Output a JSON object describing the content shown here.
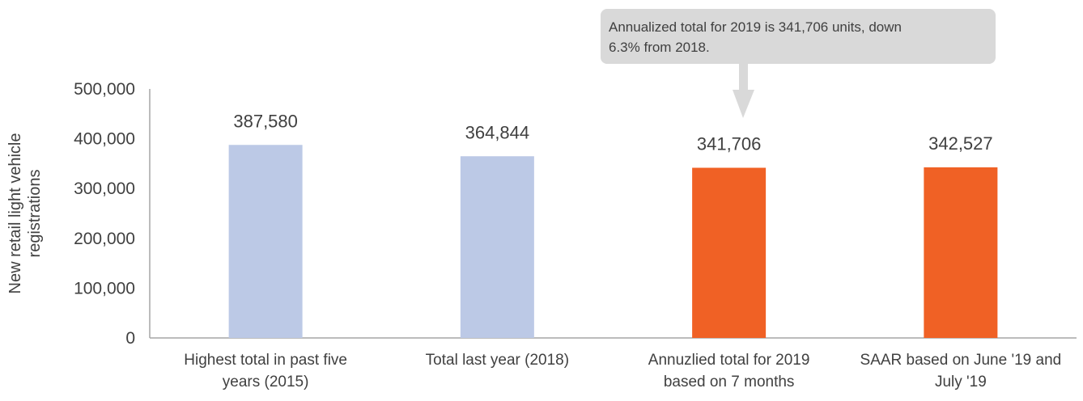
{
  "chart_data": {
    "type": "bar",
    "categories": [
      [
        "Highest total in past five",
        "years (2015)"
      ],
      [
        "Total last year (2018)"
      ],
      [
        "Annuzlied total for 2019",
        "based on 7 months"
      ],
      [
        "SAAR based on June '19 and",
        "July '19"
      ]
    ],
    "values": [
      387580,
      364844,
      341706,
      342527
    ],
    "data_labels": [
      "387,580",
      "364,844",
      "341,706",
      "342,527"
    ],
    "bar_colors": [
      "#bcc9e6",
      "#bcc9e6",
      "#f06125",
      "#f06125"
    ],
    "ylabel": [
      "New retail light vehicle",
      "registrations"
    ],
    "ylim": [
      0,
      500000
    ],
    "yticks": [
      0,
      100000,
      200000,
      300000,
      400000,
      500000
    ],
    "ytick_labels": [
      "0",
      "100,000",
      "200,000",
      "300,000",
      "400,000",
      "500,000"
    ],
    "grid": false,
    "annotation": {
      "text": [
        "Annualized total for 2019 is 341,706 units, down",
        "6.3% from 2018."
      ],
      "target_index": 2,
      "box_color": "#d9d9d9",
      "arrow_color": "#d9d9d9"
    },
    "axis_color": "#a6a6a6",
    "text_color": "#404040"
  }
}
